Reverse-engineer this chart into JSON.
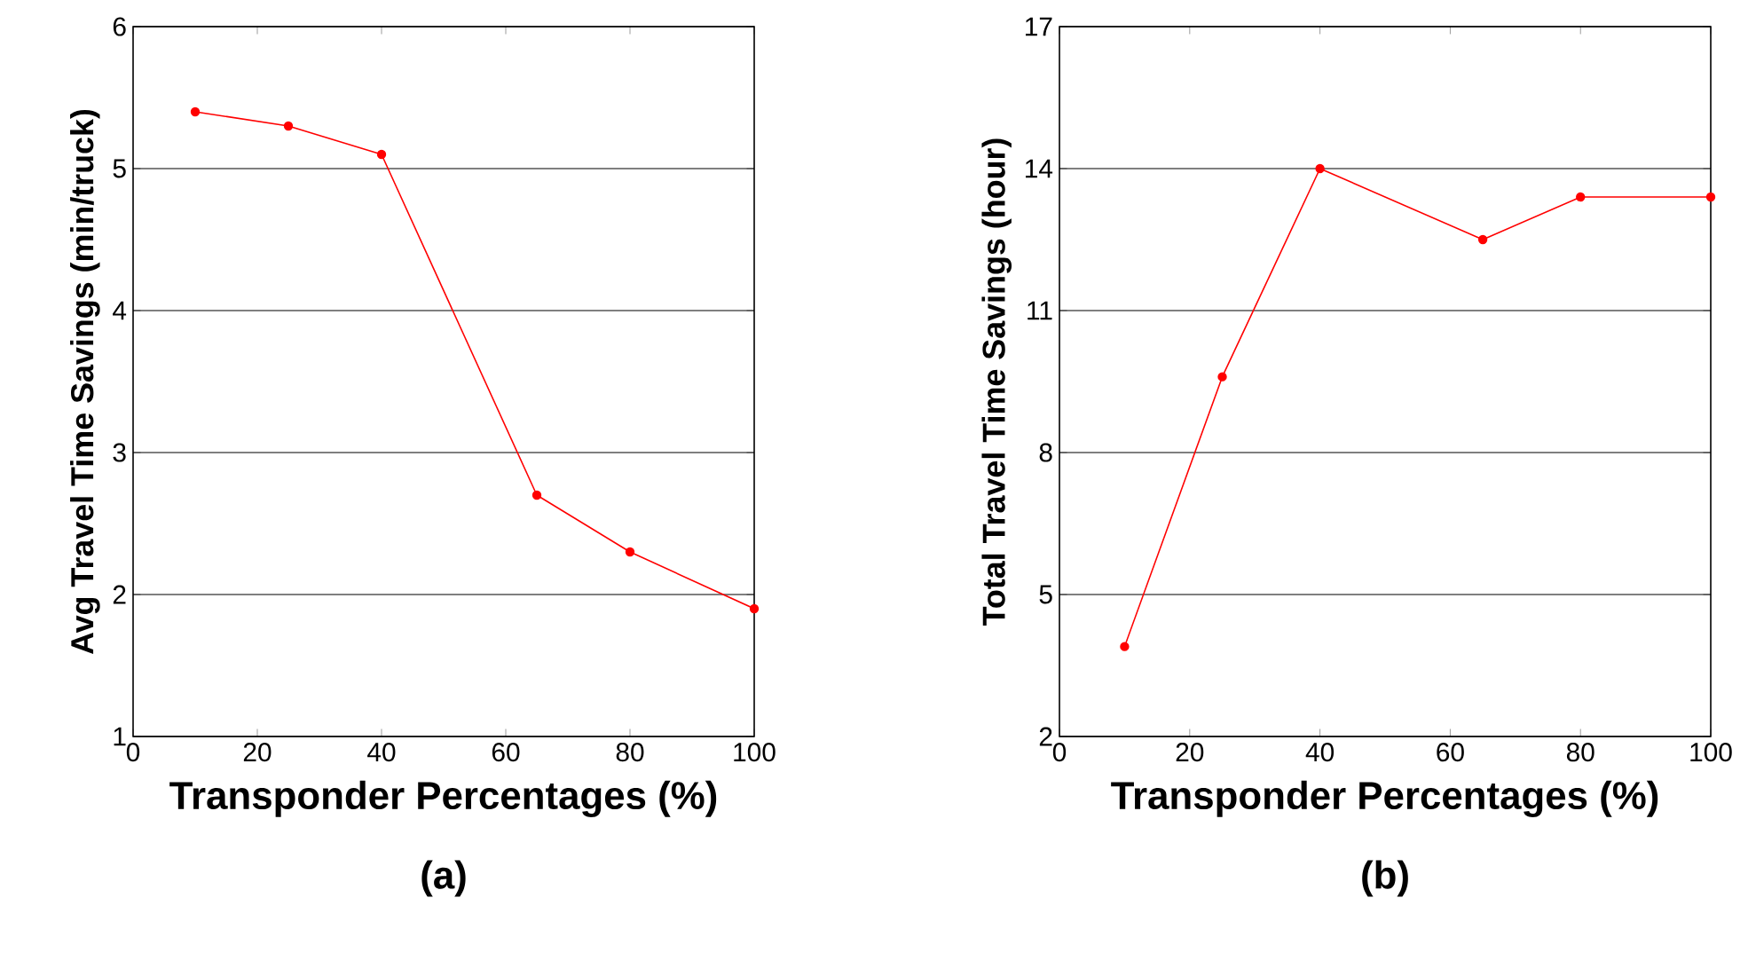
{
  "chart_data": [
    {
      "type": "line",
      "xlabel": "Transponder Percentages (%)",
      "ylabel": "Avg Travel Time Savings (min/truck)",
      "annotations": [
        "(a)"
      ],
      "x": [
        10,
        25,
        40,
        65,
        80,
        100
      ],
      "series": [
        {
          "color": "#ff0000",
          "values": [
            5.4,
            5.3,
            5.1,
            2.7,
            2.3,
            1.9
          ]
        }
      ],
      "xlim": [
        0,
        100
      ],
      "xticks": [
        0,
        20,
        40,
        60,
        80,
        100
      ],
      "ylim": [
        1,
        6
      ],
      "yticks": [
        1,
        2,
        3,
        4,
        5,
        6
      ],
      "grid": "y",
      "marker": "circle",
      "line_style": "solid"
    },
    {
      "type": "line",
      "xlabel": "Transponder Percentages (%)",
      "ylabel": "Total Travel Time Savings (hour)",
      "annotations": [
        "(b)"
      ],
      "x": [
        10,
        25,
        40,
        65,
        80,
        100
      ],
      "series": [
        {
          "color": "#ff0000",
          "values": [
            3.9,
            9.6,
            14.0,
            12.5,
            13.4,
            13.4
          ]
        }
      ],
      "xlim": [
        0,
        100
      ],
      "xticks": [
        0,
        20,
        40,
        60,
        80,
        100
      ],
      "ylim": [
        2,
        17
      ],
      "yticks": [
        2,
        5,
        8,
        11,
        14,
        17
      ],
      "grid": "y",
      "marker": "circle",
      "line_style": "solid"
    }
  ]
}
